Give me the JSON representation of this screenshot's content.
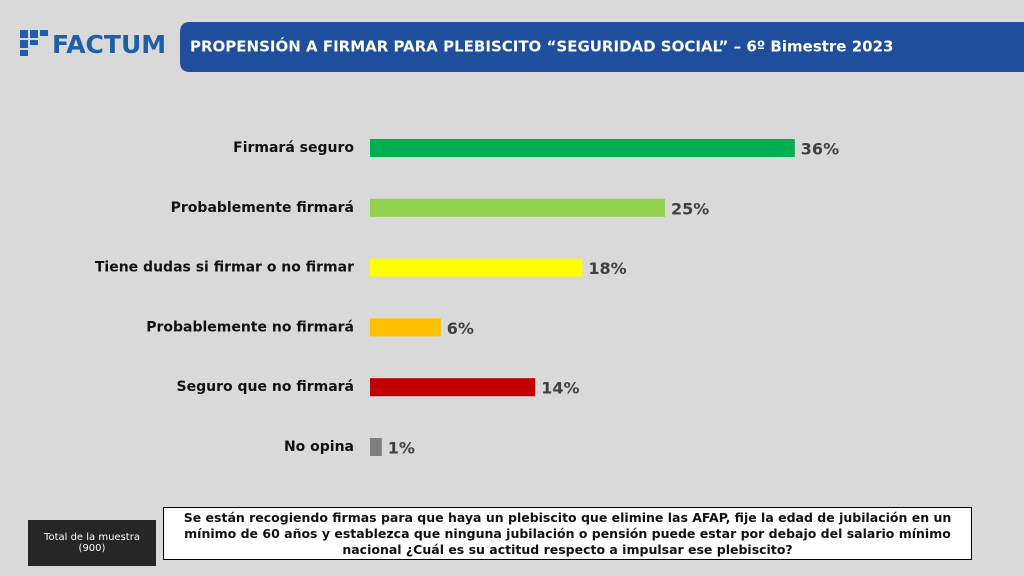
{
  "logo": "FACTUM",
  "chart_data": {
    "type": "hbar",
    "title": "PROPENSIÓN A FIRMAR PARA PLEBISCITO “SEGURIDAD SOCIAL” – 6º Bimestre 2023",
    "categories": [
      "Firmará seguro",
      "Probablemente firmará",
      "Tiene dudas si firmar o no firmar",
      "Probablemente no firmará",
      "Seguro que no firmará",
      "No opina"
    ],
    "values": [
      36,
      25,
      18,
      6,
      14,
      1
    ],
    "value_labels": [
      "36%",
      "25%",
      "18%",
      "6%",
      "14%",
      "1%"
    ],
    "colors": [
      "#00b050",
      "#92d050",
      "#ffff00",
      "#ffc000",
      "#c00000",
      "#7f7f7f"
    ]
  },
  "sample": {
    "label": "Total de la muestra",
    "count": "(900)"
  },
  "question": "Se están recogiendo firmas para que haya un plebiscito que elimine las AFAP, fije la edad de jubilación en un mínimo de 60 años y establezca que ninguna jubilación o pensión puede estar por debajo del salario mínimo nacional ¿Cuál es su actitud respecto a impulsar ese plebiscito?"
}
